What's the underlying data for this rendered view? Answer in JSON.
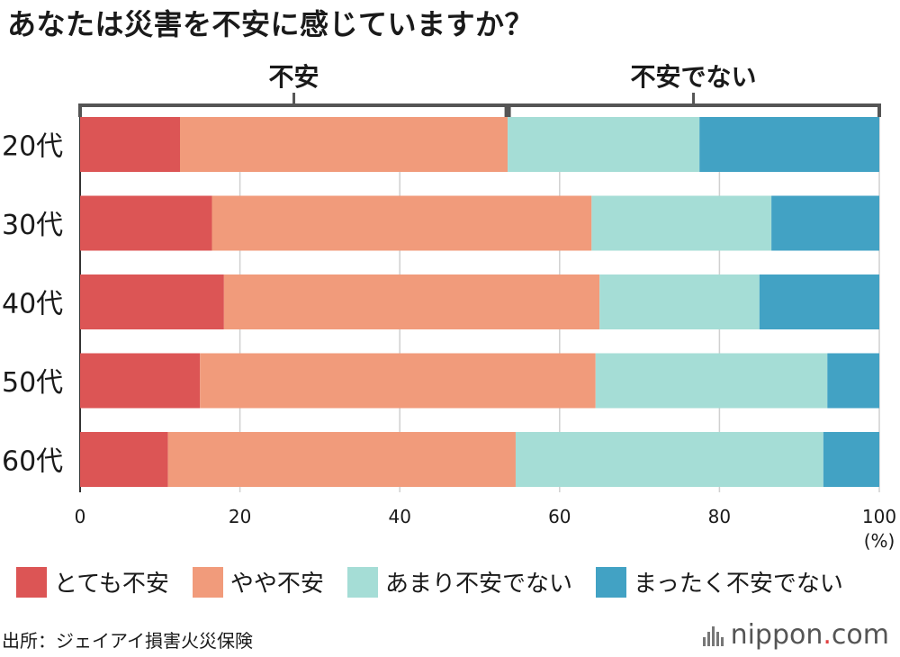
{
  "title": "あなたは災害を不安に感じていますか？",
  "chart_data": {
    "type": "bar",
    "orientation": "horizontal-stacked",
    "categories": [
      "20代",
      "30代",
      "40代",
      "50代",
      "60代"
    ],
    "series": [
      {
        "name": "とても不安",
        "color": "#dc5555",
        "values": [
          12.5,
          16.5,
          18,
          15,
          11
        ]
      },
      {
        "name": "やや不安",
        "color": "#f19b7b",
        "values": [
          41,
          47.5,
          47,
          49.5,
          43.5
        ]
      },
      {
        "name": "あまり不安でない",
        "color": "#a5ddd6",
        "values": [
          24,
          22.5,
          20,
          29,
          38.5
        ]
      },
      {
        "name": "まったく不安でない",
        "color": "#42a2c4",
        "values": [
          22.5,
          13.5,
          15,
          6.5,
          7
        ]
      }
    ],
    "xlim": [
      0,
      100
    ],
    "xticks": [
      "0",
      "20",
      "40",
      "60",
      "80",
      "100"
    ],
    "xunit": "(%)",
    "grid": true,
    "legend_position": "bottom",
    "bracket_split_value": 53.5,
    "bracket_labels": [
      "不安",
      "不安でない"
    ]
  },
  "source": "出所：ジェイアイ損害火災保険",
  "logo": {
    "main": "nippon",
    "dot": ".",
    "suffix": "com"
  }
}
